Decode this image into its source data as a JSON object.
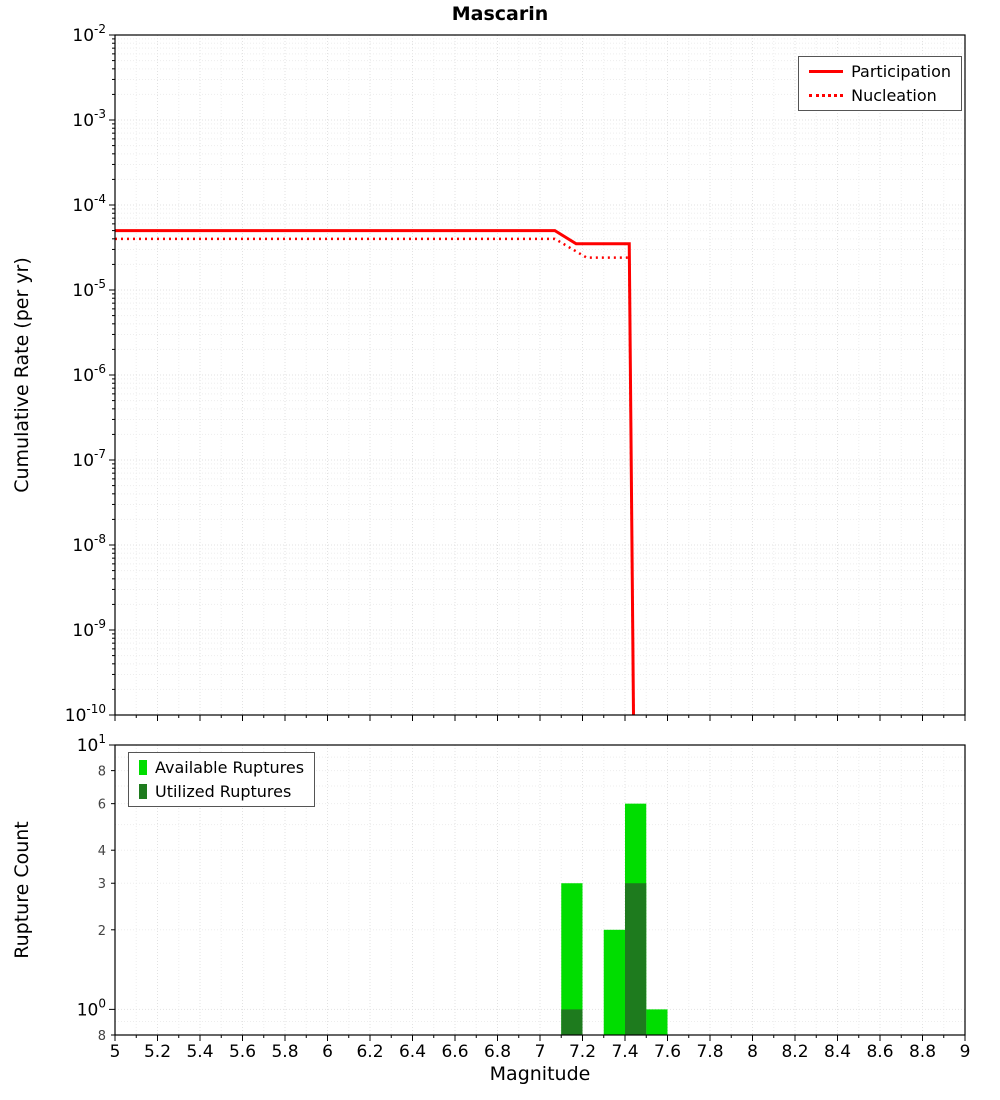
{
  "title": "Mascarin",
  "chart_data": [
    {
      "type": "line",
      "title": "Mascarin",
      "xlabel": "",
      "ylabel": "Cumulative Rate (per yr)",
      "xlim": [
        5,
        9
      ],
      "ylim": [
        1e-10,
        0.01
      ],
      "yscale": "log",
      "x_tick_step": 0.2,
      "legend_position": "top-right",
      "grid": true,
      "series": [
        {
          "name": "Participation",
          "color": "#ff0000",
          "dash": "solid",
          "width": 3,
          "points": [
            [
              5,
              5e-05
            ],
            [
              7.07,
              5e-05
            ],
            [
              7.17,
              3.5e-05
            ],
            [
              7.42,
              3.5e-05
            ],
            [
              7.44,
              1e-10
            ]
          ]
        },
        {
          "name": "Nucleation",
          "color": "#ff0000",
          "dash": "dotted",
          "width": 2.5,
          "points": [
            [
              5,
              4e-05
            ],
            [
              7.07,
              4e-05
            ],
            [
              7.22,
              2.4e-05
            ],
            [
              7.42,
              2.4e-05
            ],
            [
              7.44,
              1e-10
            ]
          ]
        }
      ]
    },
    {
      "type": "bar",
      "title": "",
      "xlabel": "Magnitude",
      "ylabel": "Rupture Count",
      "xlim": [
        5,
        9
      ],
      "ylim": [
        0.8,
        10
      ],
      "yscale": "log",
      "x_tick_step": 0.2,
      "bar_width": 0.1,
      "y_ticks": [
        0.8,
        1,
        2,
        3,
        4,
        6,
        8,
        10
      ],
      "legend_position": "top-left",
      "grid": true,
      "series": [
        {
          "name": "Available Ruptures",
          "color": "#00dd00",
          "bars": [
            {
              "x": 7.15,
              "count": 3
            },
            {
              "x": 7.35,
              "count": 2
            },
            {
              "x": 7.45,
              "count": 6
            },
            {
              "x": 7.55,
              "count": 1
            }
          ]
        },
        {
          "name": "Utilized Ruptures",
          "color": "#1e7b1e",
          "bars": [
            {
              "x": 7.15,
              "count": 1
            },
            {
              "x": 7.45,
              "count": 3
            }
          ]
        }
      ]
    }
  ]
}
